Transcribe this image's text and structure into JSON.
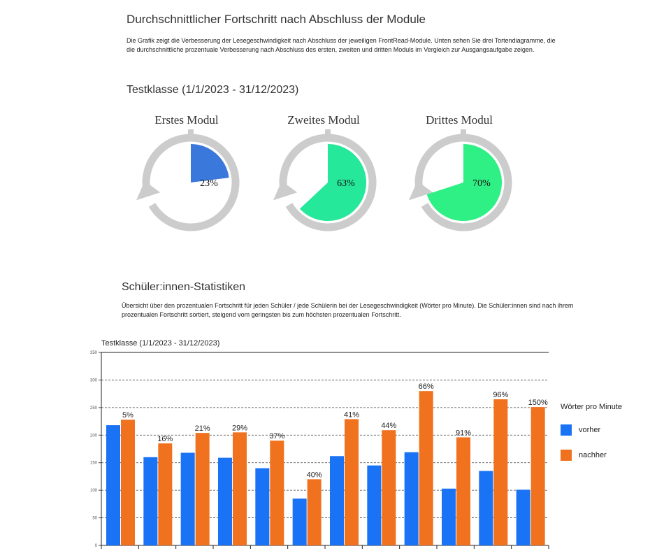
{
  "header": {
    "title": "Durchschnittlicher Fortschritt nach Abschluss der Module",
    "description": "Die Grafik zeigt die Verbesserung der Lesegeschwindigkeit nach Abschluss der jeweiligen FrontRead-Module. Unten sehen Sie drei Tortendiagramme, die die durchschnittliche prozentuale Verbesserung nach Abschluss des ersten, zweiten und dritten Moduls im Vergleich zur Ausgangsaufgabe zeigen."
  },
  "class_title": "Testklasse (1/1/2023 - 31/12/2023)",
  "modules": [
    {
      "title": "Erstes Modul",
      "percent": 23,
      "label": "23%",
      "color": "#3b78db"
    },
    {
      "title": "Zweites Modul",
      "percent": 63,
      "label": "63%",
      "color": "#25e89a"
    },
    {
      "title": "Drittes Modul",
      "percent": 70,
      "label": "70%",
      "color": "#2ef084"
    }
  ],
  "students": {
    "title": "Schüler:innen-Statistiken",
    "description": "Übersicht über den prozentualen Fortschritt für jeden Schüler / jede Schülerin bei der Lesegeschwindigkeit (Wörter pro Minute). Die Schüler:innen sind nach ihrem prozentualen Fortschritt sortiert, steigend vom geringsten bis zum höchsten prozentualen Fortschritt."
  },
  "chart_data": {
    "type": "bar",
    "title": "Testklasse (1/1/2023 - 31/12/2023)",
    "ylim": [
      0,
      350
    ],
    "yticks": [
      "0",
      "50",
      "100",
      "150",
      "200",
      "250",
      "300",
      "350"
    ],
    "grid": true,
    "legend_title": "Wörter pro Minute",
    "legend_position": "right",
    "series": [
      {
        "name": "vorher",
        "color": "#1a73f5",
        "values": [
          218,
          160,
          168,
          159,
          140,
          85,
          162,
          145,
          169,
          103,
          135,
          101
        ]
      },
      {
        "name": "nachher",
        "color": "#f0721e",
        "values": [
          228,
          185,
          204,
          205,
          190,
          120,
          229,
          209,
          280,
          196,
          265,
          251
        ]
      }
    ],
    "data_labels": [
      "5%",
      "16%",
      "21%",
      "29%",
      "37%",
      "40%",
      "41%",
      "44%",
      "66%",
      "91%",
      "96%",
      "150%"
    ]
  },
  "gauge_color": "#cccccc"
}
